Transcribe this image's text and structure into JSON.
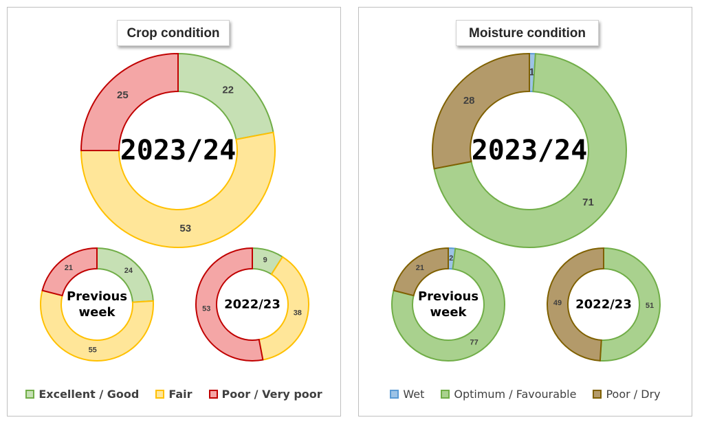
{
  "colors": {
    "excellent_fill": "#c6e0b4",
    "excellent_stroke": "#70ad47",
    "fair_fill": "#ffe699",
    "fair_stroke": "#ffc000",
    "poor_fill": "#f4a6a6",
    "poor_stroke": "#c00000",
    "wet_fill": "#9dc3e6",
    "wet_stroke": "#5b9bd5",
    "optimum_fill": "#a9d18e",
    "optimum_stroke": "#70ad47",
    "dry_fill": "#b39a6a",
    "dry_stroke": "#7f6000"
  },
  "crop": {
    "title": "Crop condition",
    "legend": [
      "Excellent / Good",
      "Fair",
      "Poor / Very poor"
    ]
  },
  "moisture": {
    "title": "Moisture  condition",
    "legend": [
      "Wet",
      "Optimum / Favourable",
      "Poor / Dry"
    ]
  },
  "chart_data": [
    {
      "type": "pie",
      "title": "Crop condition",
      "categories": [
        "Excellent / Good",
        "Fair",
        "Poor / Very poor"
      ],
      "series": [
        {
          "name": "2023/24",
          "values": [
            22,
            53,
            25
          ]
        },
        {
          "name": "Previous week",
          "values": [
            24,
            55,
            21
          ]
        },
        {
          "name": "2022/23",
          "values": [
            9,
            38,
            53
          ]
        }
      ]
    },
    {
      "type": "pie",
      "title": "Moisture  condition",
      "categories": [
        "Wet",
        "Optimum / Favourable",
        "Poor / Dry"
      ],
      "series": [
        {
          "name": "2023/24",
          "values": [
            1,
            71,
            28
          ]
        },
        {
          "name": "Previous week",
          "values": [
            2,
            77,
            21
          ]
        },
        {
          "name": "2022/23",
          "values": [
            0,
            51,
            49
          ]
        }
      ]
    }
  ]
}
